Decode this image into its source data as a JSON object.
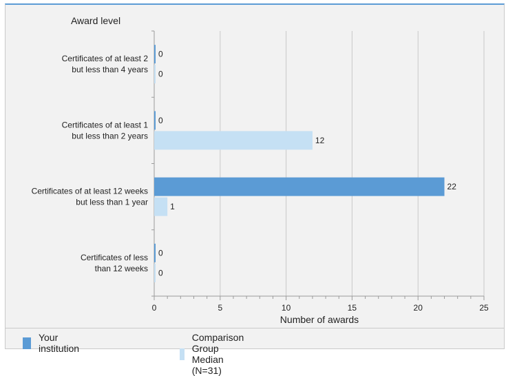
{
  "chart_data": {
    "type": "bar",
    "orientation": "horizontal",
    "ylabel": "Award level",
    "xlabel": "Number of awards",
    "xlim": [
      0,
      25
    ],
    "xticks": [
      0,
      5,
      10,
      15,
      20,
      25
    ],
    "grid": true,
    "legend_position": "bottom",
    "categories": [
      [
        "Certificates of at least 2",
        "but less than 4 years"
      ],
      [
        "Certificates of at least 1",
        "but  less than 2 years"
      ],
      [
        "Certificates of at least 12 weeks",
        "but less than 1 year"
      ],
      [
        "Certificates of less",
        "than 12 weeks"
      ]
    ],
    "series": [
      {
        "name": "Your institution",
        "color": "#5b9bd5",
        "values": [
          0,
          0,
          22,
          0
        ]
      },
      {
        "name": "Comparison Group Median (N=31)",
        "color": "#c5e0f4",
        "values": [
          0,
          12,
          1,
          0
        ]
      }
    ]
  }
}
